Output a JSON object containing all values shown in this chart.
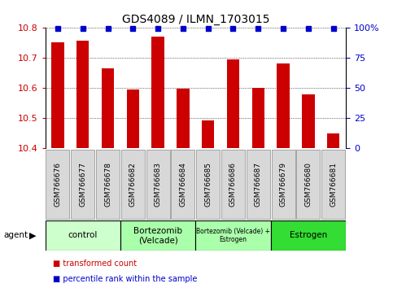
{
  "title": "GDS4089 / ILMN_1703015",
  "samples": [
    "GSM766676",
    "GSM766677",
    "GSM766678",
    "GSM766682",
    "GSM766683",
    "GSM766684",
    "GSM766685",
    "GSM766686",
    "GSM766687",
    "GSM766679",
    "GSM766680",
    "GSM766681"
  ],
  "bar_values": [
    10.75,
    10.755,
    10.665,
    10.595,
    10.77,
    10.598,
    10.493,
    10.695,
    10.6,
    10.68,
    10.578,
    10.448
  ],
  "percentile_values": [
    100,
    100,
    100,
    100,
    100,
    100,
    100,
    100,
    100,
    100,
    100,
    100
  ],
  "bar_color": "#cc0000",
  "percentile_color": "#0000cc",
  "ylim_left": [
    10.4,
    10.8
  ],
  "ylim_right": [
    0,
    100
  ],
  "yticks_left": [
    10.4,
    10.5,
    10.6,
    10.7,
    10.8
  ],
  "yticks_right": [
    0,
    25,
    50,
    75,
    100
  ],
  "ytick_labels_right": [
    "0",
    "25",
    "50",
    "75",
    "100%"
  ],
  "groups": [
    {
      "label": "control",
      "start": 0,
      "end": 3,
      "color": "#ccffcc",
      "fontsize": 7.5
    },
    {
      "label": "Bortezomib\n(Velcade)",
      "start": 3,
      "end": 6,
      "color": "#aaffaa",
      "fontsize": 7.5
    },
    {
      "label": "Bortezomib (Velcade) +\nEstrogen",
      "start": 6,
      "end": 9,
      "color": "#aaffaa",
      "fontsize": 5.5
    },
    {
      "label": "Estrogen",
      "start": 9,
      "end": 12,
      "color": "#33dd33",
      "fontsize": 7.5
    }
  ],
  "legend_items": [
    {
      "label": "transformed count",
      "color": "#cc0000"
    },
    {
      "label": "percentile rank within the sample",
      "color": "#0000cc"
    }
  ],
  "bar_width": 0.5,
  "percentile_marker_size": 5,
  "background_color": "#ffffff",
  "cell_color": "#d8d8d8",
  "cell_edge_color": "#888888"
}
